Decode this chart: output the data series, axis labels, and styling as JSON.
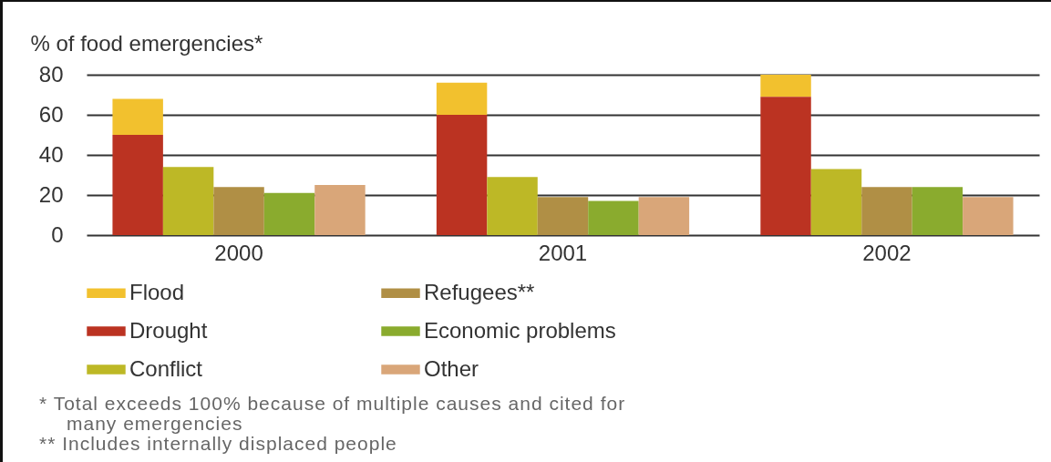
{
  "chart_data": {
    "type": "bar",
    "ylabel": "% of food emergencies*",
    "categories": [
      "2000",
      "2001",
      "2002"
    ],
    "series": [
      {
        "name": "Flood",
        "color": "#f2c12e",
        "values": [
          18,
          16,
          11
        ],
        "base": [
          50,
          60,
          69
        ]
      },
      {
        "name": "Drought",
        "color": "#bb3322",
        "values": [
          50,
          60,
          69
        ]
      },
      {
        "name": "Conflict",
        "color": "#bdb826",
        "values": [
          34,
          29,
          33
        ]
      },
      {
        "name": "Refugees**",
        "color": "#b08f45",
        "values": [
          24,
          19,
          24
        ]
      },
      {
        "name": "Economic problems",
        "color": "#8aab2e",
        "values": [
          21,
          17,
          24
        ]
      },
      {
        "name": "Other",
        "color": "#d9a679",
        "values": [
          25,
          19,
          19
        ]
      }
    ],
    "ylim": [
      0,
      80
    ],
    "yticks": [
      0,
      20,
      40,
      60,
      80
    ],
    "grid": "y",
    "legend": "bottom",
    "annotations": [
      "* Total exceeds 100% because of multiple causes and cited for many emergencies",
      "** Includes internally displaced people"
    ]
  }
}
